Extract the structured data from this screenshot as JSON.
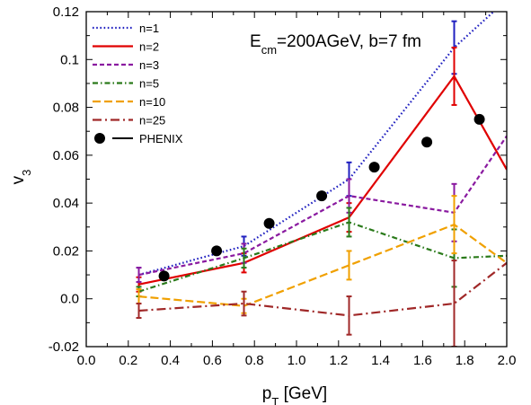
{
  "chart_data": {
    "type": "line",
    "xlabel": {
      "main": "p",
      "sub": "T",
      "suffix": " [GeV]"
    },
    "ylabel": {
      "main": "v",
      "sub": "3"
    },
    "annotation": {
      "pre": "E",
      "sub": "cm",
      "post": "=200AGeV, b=7 fm"
    },
    "xlim": [
      0.0,
      2.0
    ],
    "ylim": [
      -0.02,
      0.12
    ],
    "xticks": [
      "0.0",
      "0.2",
      "0.4",
      "0.6",
      "0.8",
      "1.0",
      "1.2",
      "1.4",
      "1.6",
      "1.8",
      "2.0"
    ],
    "yticks": [
      "-0.02",
      "0.0",
      "0.02",
      "0.04",
      "0.06",
      "0.08",
      "0.1",
      "0.12"
    ],
    "legend_position": "top-left",
    "series": [
      {
        "name": "n=1",
        "color": "#2020c0",
        "dash": "dotted",
        "x": [
          0.25,
          0.75,
          1.25,
          1.75,
          2.0
        ],
        "y": [
          0.01,
          0.022,
          0.05,
          0.105,
          0.125
        ],
        "err": [
          0.003,
          0.004,
          0.007,
          0.011,
          null
        ]
      },
      {
        "name": "n=2",
        "color": "#e00000",
        "dash": "solid",
        "x": [
          0.25,
          0.75,
          1.25,
          1.75,
          2.0
        ],
        "y": [
          0.006,
          0.015,
          0.034,
          0.093,
          0.054
        ],
        "err": [
          0.003,
          0.004,
          0.006,
          0.012,
          null
        ]
      },
      {
        "name": "n=3",
        "color": "#8a1aa0",
        "dash": "dashed",
        "x": [
          0.25,
          0.75,
          1.25,
          1.75,
          2.0
        ],
        "y": [
          0.01,
          0.019,
          0.043,
          0.036,
          0.068
        ],
        "err": [
          0.003,
          0.004,
          0.007,
          0.012,
          null
        ]
      },
      {
        "name": "n=5",
        "color": "#2a7a1a",
        "dash": "dashdot",
        "x": [
          0.25,
          0.75,
          1.25,
          1.75,
          2.0
        ],
        "y": [
          0.003,
          0.017,
          0.032,
          0.017,
          0.018
        ],
        "err": [
          0.002,
          0.004,
          0.006,
          0.012,
          null
        ]
      },
      {
        "name": "n=10",
        "color": "#f0a000",
        "dash": "longdash",
        "x": [
          0.25,
          0.75,
          1.25,
          1.75,
          2.0
        ],
        "y": [
          0.001,
          -0.003,
          0.014,
          0.031,
          0.015
        ],
        "err": [
          0.003,
          0.003,
          0.006,
          0.012,
          null
        ]
      },
      {
        "name": "n=25",
        "color": "#a02828",
        "dash": "longdashdot",
        "x": [
          0.25,
          0.75,
          1.25,
          1.75,
          2.0
        ],
        "y": [
          -0.005,
          -0.002,
          -0.007,
          -0.002,
          0.015
        ],
        "err": [
          0.003,
          0.005,
          0.008,
          0.018,
          null
        ]
      },
      {
        "name": "PHENIX",
        "color": "#000000",
        "type": "scatter",
        "x": [
          0.37,
          0.62,
          0.87,
          1.12,
          1.37,
          1.62,
          1.87
        ],
        "y": [
          0.0095,
          0.02,
          0.0315,
          0.043,
          0.055,
          0.0655,
          0.075
        ]
      }
    ]
  }
}
